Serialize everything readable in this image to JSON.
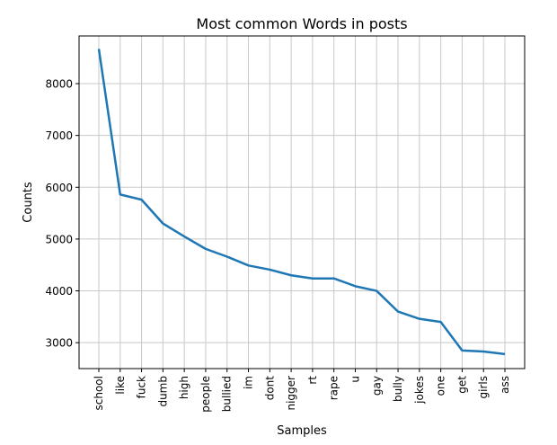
{
  "chart_data": {
    "type": "line",
    "title": "Most common Words in posts",
    "xlabel": "Samples",
    "ylabel": "Counts",
    "categories": [
      "school",
      "like",
      "fuck",
      "dumb",
      "high",
      "people",
      "bullied",
      "im",
      "dont",
      "nigger",
      "rt",
      "rape",
      "u",
      "gay",
      "bully",
      "jokes",
      "one",
      "get",
      "girls",
      "ass"
    ],
    "values": [
      8670,
      5860,
      5760,
      5300,
      5050,
      4810,
      4660,
      4490,
      4410,
      4300,
      4240,
      4240,
      4090,
      4000,
      3600,
      3460,
      3400,
      2850,
      2830,
      2780
    ],
    "ylim": [
      2500,
      8920
    ],
    "yticks": [
      3000,
      4000,
      5000,
      6000,
      7000,
      8000
    ],
    "grid": true,
    "line_color": "#1f77b4"
  }
}
